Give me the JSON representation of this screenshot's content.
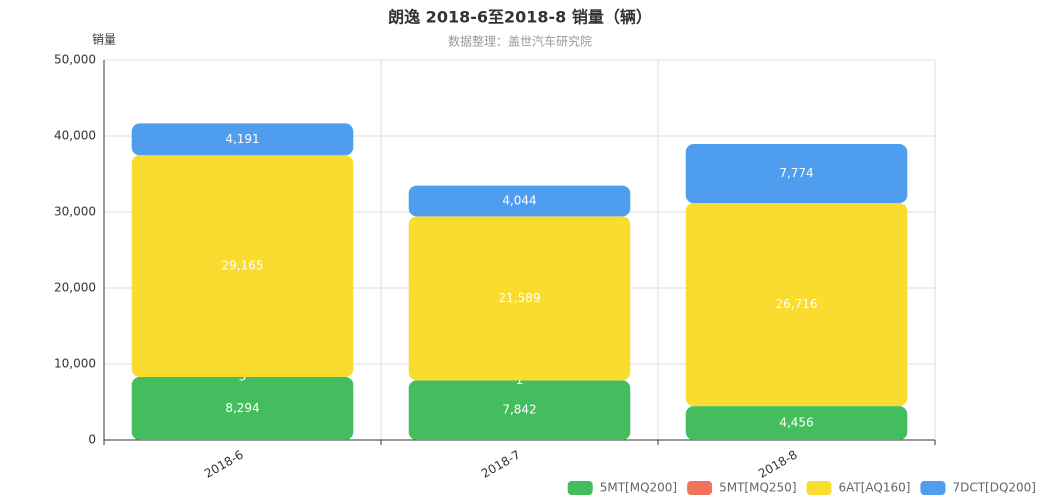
{
  "chart_data": {
    "type": "stacked-bar",
    "title": "朗逸 2018-6至2018-8 销量（辆）",
    "subtitle": "数据整理：盖世汽车研究院",
    "y_label": "销量",
    "categories": [
      "2018-6",
      "2018-7",
      "2018-8"
    ],
    "series": [
      {
        "name": "5MT[MQ200]",
        "color": "#43bd5e",
        "values": [
          8294,
          7842,
          4456
        ],
        "value_labels": [
          "8,294",
          "7,842",
          "4,456"
        ]
      },
      {
        "name": "5MT[MQ250]",
        "color": "#f2735c",
        "values": [
          3,
          1,
          null
        ],
        "value_labels": [
          "3",
          "1",
          null
        ]
      },
      {
        "name": "6AT[AQ160]",
        "color": "#f9dc2f",
        "values": [
          29165,
          21589,
          26716
        ],
        "value_labels": [
          "29,165",
          "21,589",
          "26,716"
        ]
      },
      {
        "name": "7DCT[DQ200]",
        "color": "#4f9def",
        "values": [
          4191,
          4044,
          7774
        ],
        "value_labels": [
          "4,191",
          "4,044",
          "7,774"
        ]
      }
    ],
    "ylim": [
      0,
      50000
    ],
    "yticks": [
      0,
      {
        "value": 10000,
        "label": "10,000"
      },
      {
        "value": 20000,
        "label": "20,000"
      },
      {
        "value": 30000,
        "label": "30,000"
      },
      {
        "value": 40000,
        "label": "40,000"
      },
      {
        "value": 50000,
        "label": "50,000"
      }
    ],
    "grid": true,
    "legend": "bottom-right"
  }
}
